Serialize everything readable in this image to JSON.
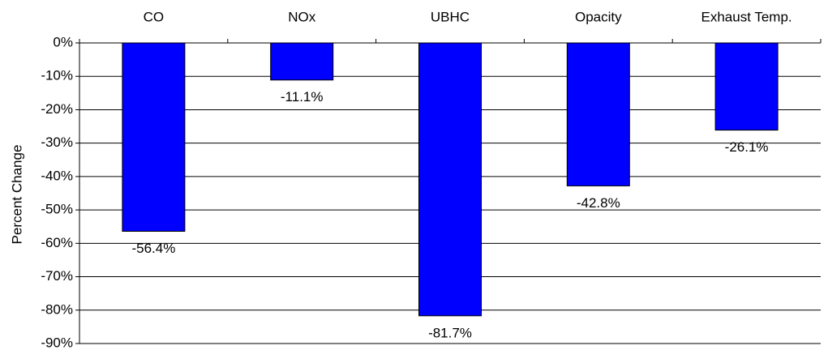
{
  "chart_data": {
    "type": "bar",
    "y_label": "Percent Change",
    "categories": [
      "CO",
      "NOx",
      "UBHC",
      "Opacity",
      "Exhaust Temp."
    ],
    "values": [
      -56.4,
      -11.1,
      -81.7,
      -42.8,
      -26.1
    ],
    "value_labels": [
      "-56.4%",
      "-11.1%",
      "-81.7%",
      "-42.8%",
      "-26.1%"
    ],
    "color": "#0000ff",
    "ylim": [
      -90,
      0
    ],
    "yticks": [
      {
        "value": 0,
        "label": "0%"
      },
      {
        "value": -10,
        "label": "-10%"
      },
      {
        "value": -20,
        "label": "-20%"
      },
      {
        "value": -30,
        "label": "-30%"
      },
      {
        "value": -40,
        "label": "-40%"
      },
      {
        "value": -50,
        "label": "-50%"
      },
      {
        "value": -60,
        "label": "-60%"
      },
      {
        "value": -70,
        "label": "-70%"
      },
      {
        "value": -80,
        "label": "-80%"
      },
      {
        "value": -90,
        "label": "-90%"
      }
    ],
    "grid": true
  }
}
